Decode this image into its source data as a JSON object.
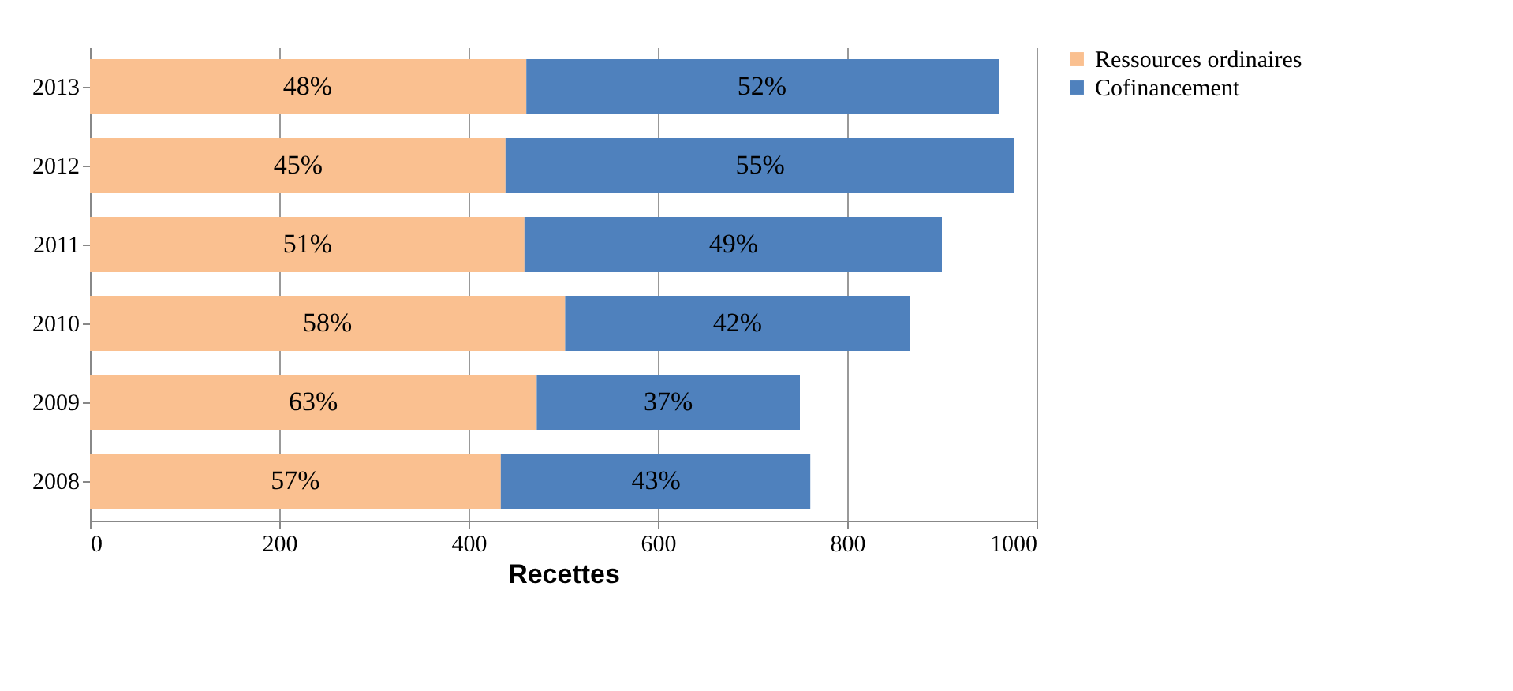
{
  "chart_data": {
    "type": "bar",
    "orientation": "horizontal",
    "stacked": true,
    "xlabel": "Recettes",
    "categories": [
      "2013",
      "2012",
      "2011",
      "2010",
      "2009",
      "2008"
    ],
    "series": [
      {
        "name": "Ressources ordinaires",
        "color": "#fac090",
        "values": [
          461,
          439,
          459,
          502,
          472,
          434
        ]
      },
      {
        "name": "Cofinancement",
        "color": "#4f81bd",
        "values": [
          499,
          537,
          441,
          364,
          278,
          327
        ]
      }
    ],
    "annotations": [
      {
        "text": "48%",
        "x": 230,
        "y": "2013"
      },
      {
        "text": "52%",
        "x": 710,
        "y": "2013"
      },
      {
        "text": "45%",
        "x": 220,
        "y": "2012"
      },
      {
        "text": "55%",
        "x": 708,
        "y": "2012"
      },
      {
        "text": "51%",
        "x": 230,
        "y": "2011"
      },
      {
        "text": "49%",
        "x": 680,
        "y": "2011"
      },
      {
        "text": "58%",
        "x": 251,
        "y": "2010"
      },
      {
        "text": "42%",
        "x": 684,
        "y": "2010"
      },
      {
        "text": "63%",
        "x": 236,
        "y": "2009"
      },
      {
        "text": "37%",
        "x": 611,
        "y": "2009"
      },
      {
        "text": "57%",
        "x": 217,
        "y": "2008"
      },
      {
        "text": "43%",
        "x": 598,
        "y": "2008"
      }
    ],
    "xlim": [
      0,
      1000
    ],
    "xticks": [
      0,
      200,
      400,
      600,
      800,
      1000
    ],
    "grid": "x",
    "legend": "right"
  }
}
